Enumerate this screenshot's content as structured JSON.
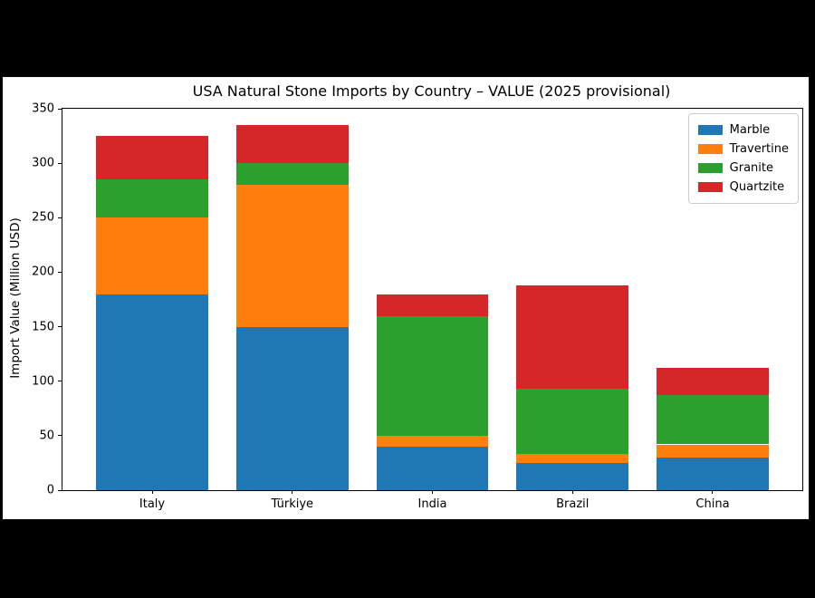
{
  "chart_data": {
    "type": "bar",
    "stacked": true,
    "title": "USA Natural Stone Imports by Country – VALUE (2025 provisional)",
    "xlabel": "",
    "ylabel": "Import Value (Million USD)",
    "categories": [
      "Italy",
      "Türkiye",
      "India",
      "Brazil",
      "China"
    ],
    "series": [
      {
        "name": "Marble",
        "color": "#1f77b4",
        "values": [
          180,
          150,
          40,
          25,
          30
        ]
      },
      {
        "name": "Travertine",
        "color": "#ff7f0e",
        "values": [
          70,
          130,
          10,
          8,
          12
        ]
      },
      {
        "name": "Granite",
        "color": "#2ca02c",
        "values": [
          35,
          20,
          110,
          60,
          45
        ]
      },
      {
        "name": "Quartzite",
        "color": "#d62728",
        "values": [
          40,
          35,
          20,
          95,
          25
        ]
      }
    ],
    "totals": [
      325,
      335,
      180,
      188,
      112
    ],
    "ylim": [
      0,
      350
    ],
    "yticks": [
      0,
      50,
      100,
      150,
      200,
      250,
      300,
      350
    ],
    "grid": false,
    "legend": {
      "position": "upper right",
      "labels": [
        "Marble",
        "Travertine",
        "Granite",
        "Quartzite"
      ]
    },
    "colors": {
      "figure_background": "#ffffff",
      "window_background": "#000000",
      "axes_edge": "#000000",
      "text": "#000000"
    }
  }
}
